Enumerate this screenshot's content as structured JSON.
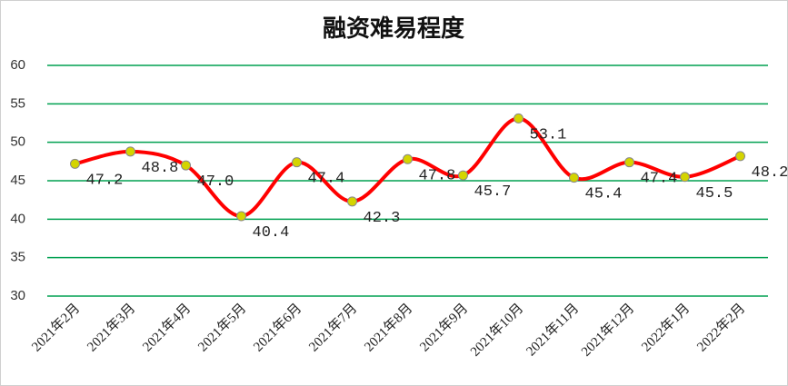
{
  "chart_data": {
    "type": "line",
    "title": "融资难易程度",
    "categories": [
      "2021年2月",
      "2021年3月",
      "2021年4月",
      "2021年5月",
      "2021年6月",
      "2021年7月",
      "2021年8月",
      "2021年9月",
      "2021年10月",
      "2021年11月",
      "2021年12月",
      "2022年1月",
      "2022年2月"
    ],
    "series": [
      {
        "name": "融资难易程度",
        "color": "#ff0000",
        "values": [
          47.2,
          48.8,
          47.0,
          40.4,
          47.4,
          42.3,
          47.8,
          45.7,
          53.1,
          45.4,
          47.4,
          45.5,
          48.2
        ],
        "value_labels": [
          "47.2",
          "48.8",
          "47.0",
          "40.4",
          "47.4",
          "42.3",
          "47.8",
          "45.7",
          "53.1",
          "45.4",
          "47.4",
          "45.5",
          "48.2"
        ]
      }
    ],
    "ylim": [
      30,
      60
    ],
    "yticks": [
      30,
      35,
      40,
      45,
      50,
      55,
      60
    ],
    "grid": true,
    "grid_color": "#00a050",
    "smooth": true,
    "marker_color": "#d4d400"
  }
}
